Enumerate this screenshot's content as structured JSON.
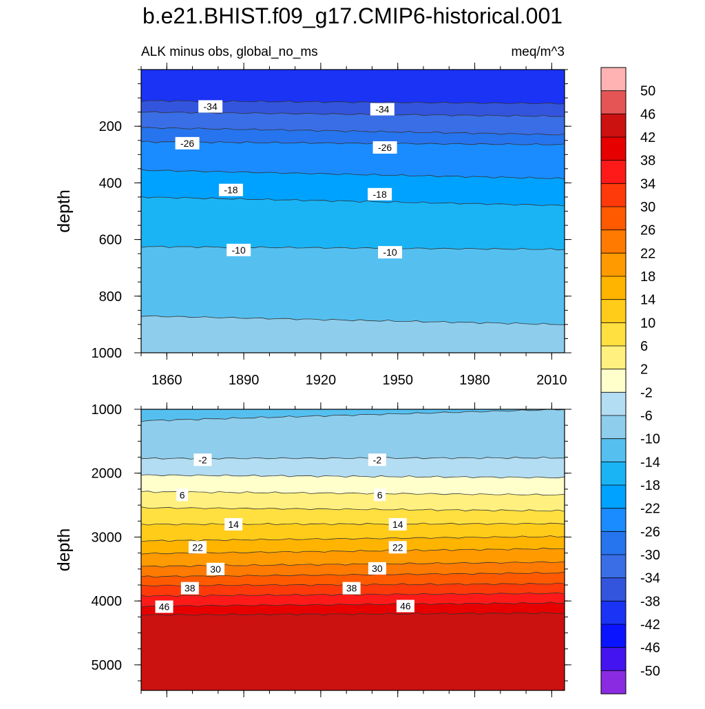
{
  "title": "b.e21.BHIST.f09_g17.CMIP6-historical.001",
  "subtitle_left": "ALK minus obs, global_no_ms",
  "subtitle_right": "meq/m^3",
  "chart_data": [
    {
      "type": "contour",
      "panel": "upper",
      "xlabel": "",
      "ylabel": "depth",
      "xlim": [
        1850,
        2015
      ],
      "ylim": [
        1000,
        0
      ],
      "xticks": [
        "1860",
        "1890",
        "1920",
        "1950",
        "1980",
        "2010"
      ],
      "yticks": [
        "200",
        "400",
        "600",
        "800",
        "1000"
      ],
      "contour_levels": [
        -34,
        -30,
        -26,
        -22,
        -18,
        -14,
        -10,
        -6
      ],
      "contour_depths_start": [
        110,
        150,
        205,
        255,
        355,
        450,
        625,
        870
      ],
      "contour_depths_end": [
        120,
        165,
        230,
        265,
        385,
        480,
        635,
        900
      ],
      "contour_labels": [
        {
          "text": "-34",
          "x": 1877,
          "y": 130
        },
        {
          "text": "-34",
          "x": 1944,
          "y": 140
        },
        {
          "text": "-26",
          "x": 1868,
          "y": 260
        },
        {
          "text": "-26",
          "x": 1945,
          "y": 275
        },
        {
          "text": "-18",
          "x": 1885,
          "y": 425
        },
        {
          "text": "-18",
          "x": 1943,
          "y": 440
        },
        {
          "text": "-10",
          "x": 1888,
          "y": 637
        },
        {
          "text": "-10",
          "x": 1947,
          "y": 645
        }
      ]
    },
    {
      "type": "contour",
      "panel": "lower",
      "xlabel": "",
      "ylabel": "depth",
      "xlim": [
        1850,
        2015
      ],
      "ylim": [
        5400,
        1000
      ],
      "yticks": [
        "1000",
        "2000",
        "3000",
        "4000",
        "5000"
      ],
      "contour_levels": [
        -6,
        -2,
        2,
        6,
        10,
        14,
        18,
        22,
        26,
        30,
        34,
        38,
        42,
        46,
        50
      ],
      "contour_depths_start": [
        1180,
        1770,
        2030,
        2290,
        2540,
        2800,
        3060,
        3260,
        3460,
        3620,
        3760,
        3920,
        4080,
        4220,
        5400
      ],
      "contour_depths_end": [
        1000,
        1760,
        2070,
        2340,
        2590,
        2790,
        2990,
        3180,
        3390,
        3560,
        3730,
        3880,
        4030,
        4190,
        5400
      ],
      "contour_labels": [
        {
          "text": "-2",
          "x": 1874,
          "y": 1790
        },
        {
          "text": "-2",
          "x": 1942,
          "y": 1790
        },
        {
          "text": "6",
          "x": 1866,
          "y": 2340
        },
        {
          "text": "6",
          "x": 1943,
          "y": 2340
        },
        {
          "text": "14",
          "x": 1886,
          "y": 2800
        },
        {
          "text": "14",
          "x": 1950,
          "y": 2800
        },
        {
          "text": "22",
          "x": 1872,
          "y": 3160
        },
        {
          "text": "22",
          "x": 1950,
          "y": 3160
        },
        {
          "text": "30",
          "x": 1879,
          "y": 3500
        },
        {
          "text": "30",
          "x": 1942,
          "y": 3490
        },
        {
          "text": "38",
          "x": 1869,
          "y": 3800
        },
        {
          "text": "38",
          "x": 1932,
          "y": 3800
        },
        {
          "text": "46",
          "x": 1859,
          "y": 4090
        },
        {
          "text": "46",
          "x": 1953,
          "y": 4080
        }
      ]
    }
  ],
  "colorbar": {
    "labels": [
      "50",
      "46",
      "42",
      "38",
      "34",
      "30",
      "26",
      "22",
      "18",
      "14",
      "10",
      "6",
      "2",
      "-2",
      "-6",
      "-10",
      "-14",
      "-18",
      "-22",
      "-26",
      "-30",
      "-34",
      "-38",
      "-42",
      "-46",
      "-50"
    ],
    "colors": [
      "#ffb3b3",
      "#e65555",
      "#cc1111",
      "#e60000",
      "#ff1a1a",
      "#ff3a0a",
      "#ff5a00",
      "#ff7a00",
      "#ff9a00",
      "#ffb400",
      "#ffcc1a",
      "#ffe040",
      "#fff080",
      "#ffffcc",
      "#b3ddf2",
      "#8ecdec",
      "#55c0f0",
      "#1ab4f5",
      "#00a2ff",
      "#1a8cff",
      "#2674ee",
      "#3a6ee6",
      "#3355dd",
      "#1a33f5",
      "#0a14ff",
      "#4414f0",
      "#8a2be2"
    ]
  }
}
